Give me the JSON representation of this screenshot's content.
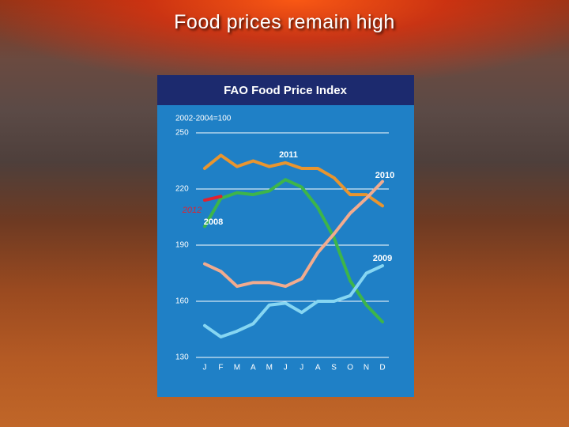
{
  "slide_title": "Food prices remain high",
  "chart_data": {
    "type": "line",
    "title": "FAO Food Price Index",
    "y_label": "2002-2004=100",
    "categories": [
      "J",
      "F",
      "M",
      "A",
      "M",
      "J",
      "J",
      "A",
      "S",
      "O",
      "N",
      "D"
    ],
    "ylim": [
      130,
      250
    ],
    "yticks": [
      130,
      160,
      190,
      220,
      250
    ],
    "grid": true,
    "series": [
      {
        "name": "2011",
        "color": "#e8952f",
        "values": [
          231,
          238,
          232,
          235,
          232,
          234,
          231,
          231,
          226,
          217,
          217,
          211
        ]
      },
      {
        "name": "2008",
        "color": "#3db54a",
        "values": [
          200,
          215,
          218,
          217,
          219,
          225,
          221,
          210,
          194,
          171,
          158,
          149
        ]
      },
      {
        "name": "2010",
        "color": "#f2ab8e",
        "values": [
          180,
          176,
          168,
          170,
          170,
          168,
          172,
          186,
          196,
          207,
          215,
          224
        ]
      },
      {
        "name": "2009",
        "color": "#86d6f2",
        "values": [
          147,
          141,
          144,
          148,
          158,
          159,
          154,
          160,
          160,
          163,
          175,
          179
        ]
      },
      {
        "name": "2012",
        "color": "#e02230",
        "values": [
          214,
          216,
          null,
          null,
          null,
          null,
          null,
          null,
          null,
          null,
          null,
          null
        ]
      }
    ]
  }
}
